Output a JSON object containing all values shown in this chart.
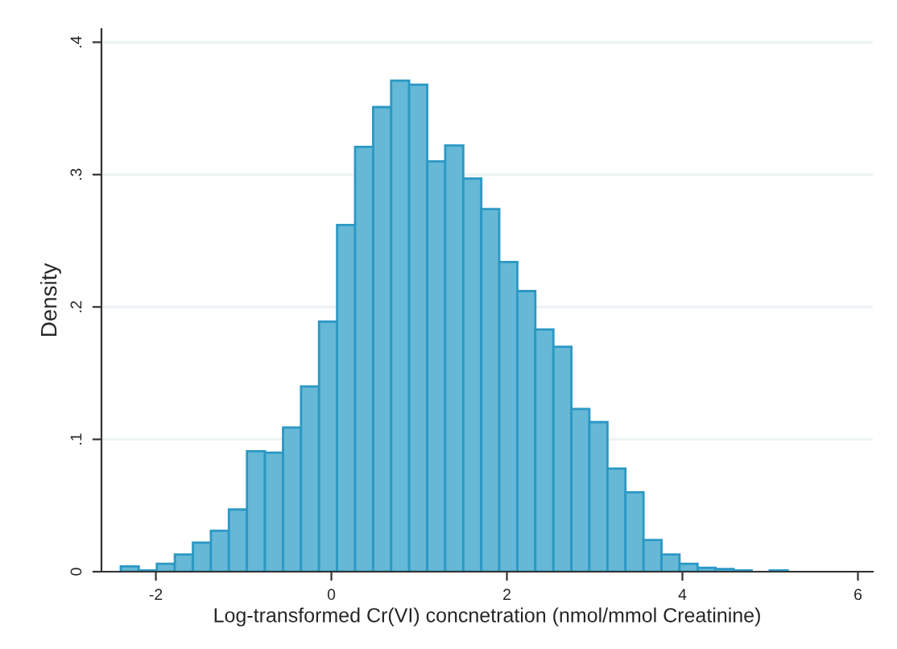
{
  "chart_data": {
    "type": "histogram",
    "xlabel": "Log-transformed Cr(VI) concnetration (nmol/mmol Creatinine)",
    "ylabel": "Density",
    "bins": [
      -2.4,
      -2.195,
      -1.989,
      -1.784,
      -1.578,
      -1.373,
      -1.168,
      -0.962,
      -0.757,
      -0.551,
      -0.346,
      -0.141,
      0.065,
      0.27,
      0.476,
      0.681,
      0.886,
      1.092,
      1.297,
      1.503,
      1.708,
      1.913,
      2.119,
      2.324,
      2.53,
      2.735,
      2.94,
      3.146,
      3.351,
      3.557,
      3.762,
      3.967,
      4.173,
      4.378,
      4.584,
      4.789,
      4.994,
      5.2
    ],
    "values": [
      0.004,
      0.001,
      0.006,
      0.013,
      0.022,
      0.031,
      0.047,
      0.091,
      0.09,
      0.109,
      0.14,
      0.189,
      0.262,
      0.321,
      0.351,
      0.371,
      0.368,
      0.31,
      0.322,
      0.297,
      0.274,
      0.234,
      0.212,
      0.183,
      0.17,
      0.123,
      0.113,
      0.078,
      0.06,
      0.024,
      0.013,
      0.006,
      0.003,
      0.002,
      0.001,
      0,
      0.001
    ],
    "color": "#65b8d6",
    "xlim": [
      -2.62,
      6.17
    ],
    "xticks": [
      -2,
      0,
      2,
      4,
      6
    ],
    "ylim": [
      0,
      0.41
    ],
    "yticks": [
      {
        "value": 0,
        "label": "0"
      },
      {
        "value": 0.1,
        "label": ".1"
      },
      {
        "value": 0.2,
        "label": ".2"
      },
      {
        "value": 0.3,
        "label": ".3"
      },
      {
        "value": 0.4,
        "label": ".4"
      }
    ],
    "grid": "y"
  }
}
